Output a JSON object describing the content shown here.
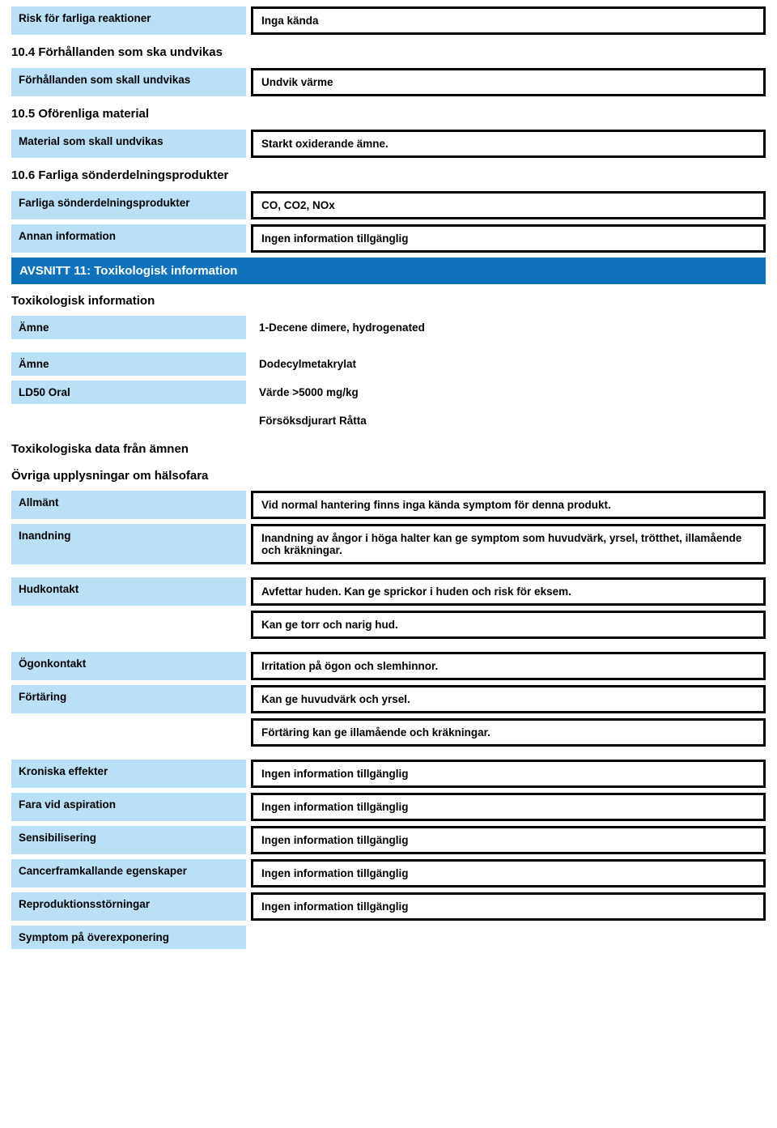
{
  "colors": {
    "label_bg": "#b9e0f7",
    "section_bg": "#0f72ba",
    "section_text": "#ffffff",
    "text": "#000000",
    "border": "#000000",
    "page_bg": "#ffffff"
  },
  "rows": [
    {
      "type": "pair",
      "label": "Risk för farliga reaktioner",
      "value": "Inga kända"
    },
    {
      "type": "heading",
      "text": "10.4 Förhållanden som ska undvikas"
    },
    {
      "type": "pair",
      "label": "Förhållanden som skall undvikas",
      "value": "Undvik värme"
    },
    {
      "type": "heading",
      "text": "10.5 Oförenliga material"
    },
    {
      "type": "pair",
      "label": "Material som skall undvikas",
      "value": "Starkt oxiderande ämne."
    },
    {
      "type": "heading",
      "text": "10.6 Farliga sönderdelningsprodukter"
    },
    {
      "type": "pair",
      "label": "Farliga sönderdelningsprodukter",
      "value": "CO, CO2, NOx"
    },
    {
      "type": "pair",
      "label": "Annan information",
      "value": "Ingen information tillgänglig"
    },
    {
      "type": "section",
      "text": "AVSNITT 11: Toxikologisk information"
    },
    {
      "type": "subheading",
      "text": "Toxikologisk information"
    },
    {
      "type": "pair_noborder",
      "label": "Ämne",
      "value": "1-Decene dimere, hydrogenated"
    },
    {
      "type": "spacer"
    },
    {
      "type": "pair_noborder",
      "label": "Ämne",
      "value": "Dodecylmetakrylat"
    },
    {
      "type": "pair_noborder",
      "label": "LD50 Oral",
      "value": "Värde >5000 mg/kg"
    },
    {
      "type": "pair_noborder",
      "label": "",
      "value": "Försöksdjurart Råtta",
      "no_label_bg": true
    },
    {
      "type": "subheading",
      "text": "Toxikologiska data från ämnen"
    },
    {
      "type": "subheading",
      "text": "Övriga upplysningar om hälsofara"
    },
    {
      "type": "pair",
      "label": "Allmänt",
      "value": "Vid normal hantering finns inga kända symptom för denna produkt."
    },
    {
      "type": "pair",
      "label": "Inandning",
      "value": "Inandning av ångor i höga halter kan ge symptom som huvudvärk, yrsel, trötthet, illamående och kräkningar."
    },
    {
      "type": "spacer"
    },
    {
      "type": "pair",
      "label": "Hudkontakt",
      "value": "Avfettar huden. Kan ge sprickor i huden och risk för eksem."
    },
    {
      "type": "pair",
      "label": "",
      "value": "Kan ge torr och narig hud.",
      "no_label_bg": true
    },
    {
      "type": "spacer"
    },
    {
      "type": "pair",
      "label": "Ögonkontakt",
      "value": "Irritation på ögon och slemhinnor."
    },
    {
      "type": "pair",
      "label": "Förtäring",
      "value": "Kan ge huvudvärk och yrsel."
    },
    {
      "type": "pair",
      "label": "",
      "value": "Förtäring kan ge illamående och kräkningar.",
      "no_label_bg": true
    },
    {
      "type": "spacer"
    },
    {
      "type": "pair",
      "label": "Kroniska effekter",
      "value": "Ingen information tillgänglig"
    },
    {
      "type": "pair",
      "label": "Fara vid aspiration",
      "value": "Ingen information tillgänglig"
    },
    {
      "type": "pair",
      "label": "Sensibilisering",
      "value": "Ingen information tillgänglig"
    },
    {
      "type": "pair",
      "label": "Cancerframkallande egenskaper",
      "value": "Ingen information tillgänglig"
    },
    {
      "type": "pair",
      "label": "Reproduktionsstörningar",
      "value": "Ingen information tillgänglig"
    },
    {
      "type": "label_only",
      "label": "Symptom på överexponering"
    }
  ]
}
